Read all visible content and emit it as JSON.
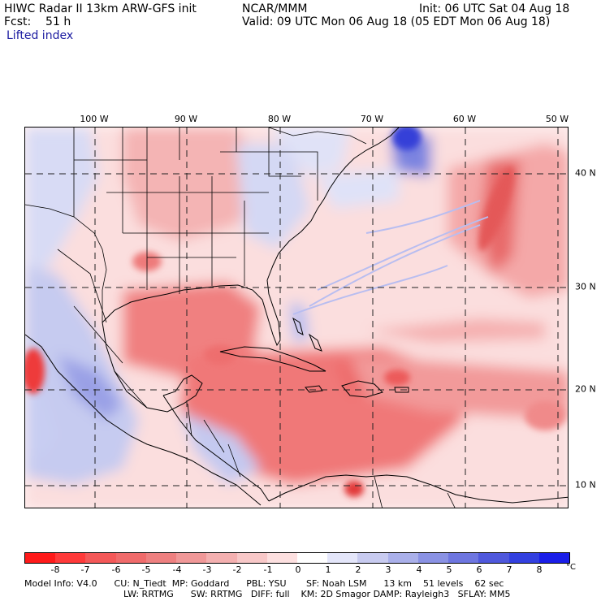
{
  "header": {
    "model": "HIWC Radar II 13km ARW-GFS init",
    "org": "NCAR/MMM",
    "init": "Init: 06 UTC Sat 04 Aug 18",
    "fcst": "Fcst:    51 h",
    "valid": "Valid: 09 UTC Mon 06 Aug 18 (05 EDT Mon 06 Aug 18)",
    "field": "Lifted index"
  },
  "map": {
    "lon_labels": [
      "100 W",
      "90 W",
      "80 W",
      "70 W",
      "60 W",
      "50 W"
    ],
    "lat_labels": [
      "40 N",
      "30 N",
      "20 N",
      "10 N"
    ],
    "colors": {
      "land_border": "#000000",
      "grid_line": "#222222",
      "neutral": "#fff8f8",
      "red_light": "#f6b4b4",
      "red_mid": "#ef7c7c",
      "red_deep": "#e83030",
      "blue_light": "#c8cbf0",
      "blue_mid": "#8a90e0",
      "blue_deep": "#3a45dd"
    }
  },
  "colorbar": {
    "labels": [
      "-8",
      "-7",
      "-6",
      "-5",
      "-4",
      "-3",
      "-2",
      "-1",
      "0",
      "1",
      "2",
      "3",
      "4",
      "5",
      "6",
      "7",
      "8"
    ],
    "unit": "°C",
    "colors": [
      "#ff1a1a",
      "#ff3a3a",
      "#f45858",
      "#f06b6b",
      "#ee8080",
      "#f09898",
      "#f4b0b0",
      "#f8c8c8",
      "#fde0e0",
      "#ffffff",
      "#e4e6fa",
      "#c8cbf0",
      "#aab0ea",
      "#8a92e4",
      "#6e76e0",
      "#4f58dc",
      "#3340e0",
      "#1a1ee8"
    ]
  },
  "info": {
    "line1": "Model Info: V4.0      CU: N_Tiedt  MP: Goddard      PBL: YSU       SF: Noah LSM      13 km    51 levels    62 sec",
    "line2": "LW: RRTMG      SW: RRTMG   DIFF: full    KM: 2D Smagor DAMP: Rayleigh3   SFLAY: MM5"
  }
}
